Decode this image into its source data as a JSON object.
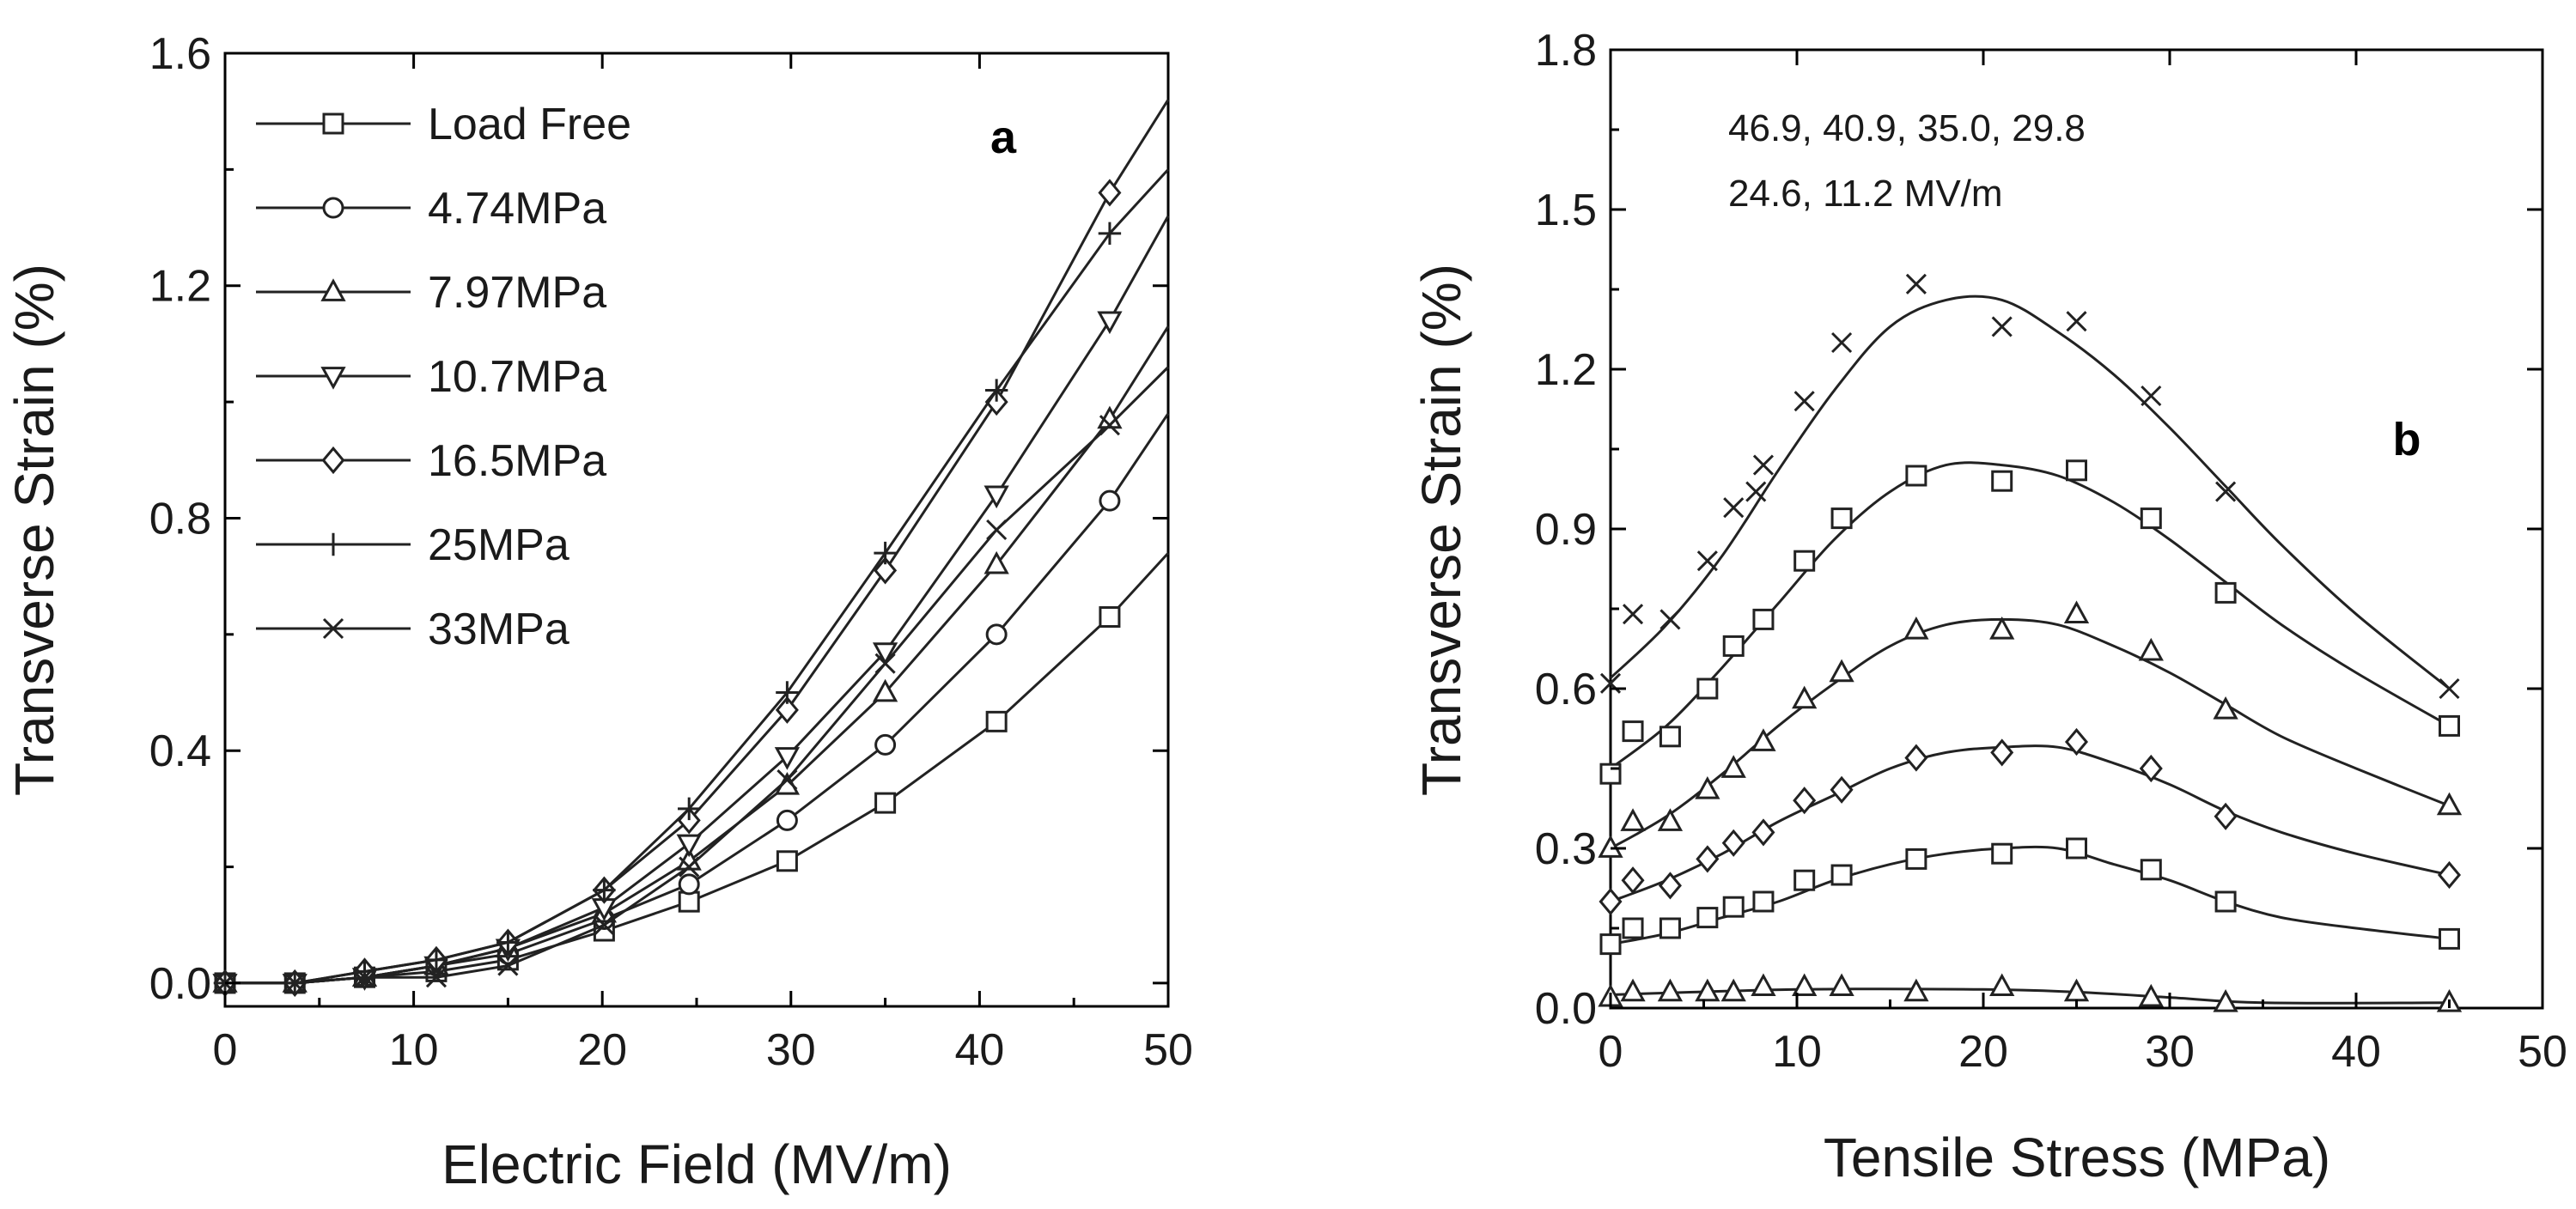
{
  "chart_data": [
    {
      "id": "a",
      "type": "line",
      "panel_label": "a",
      "xlabel": "Electric Field (MV/m)",
      "ylabel": "Transverse Strain (%)",
      "xlim": [
        0,
        50
      ],
      "ylim": [
        -0.04,
        1.6
      ],
      "xticks": [
        0,
        10,
        20,
        30,
        40,
        50
      ],
      "yticks": [
        0.0,
        0.4,
        0.8,
        1.2,
        1.6
      ],
      "ytick_labels": [
        "0.0",
        "0.4",
        "0.8",
        "1.2",
        "1.6"
      ],
      "legend_position": "top-left",
      "series": [
        {
          "name": "Load Free",
          "marker": "square",
          "x": [
            0,
            3.7,
            7.4,
            11.2,
            15,
            20.1,
            24.6,
            29.8,
            35,
            40.9,
            46.9,
            50
          ],
          "y": [
            0,
            0,
            0.01,
            0.02,
            0.04,
            0.09,
            0.14,
            0.21,
            0.31,
            0.45,
            0.63,
            0.74
          ]
        },
        {
          "name": "4.74MPa",
          "marker": "circle",
          "x": [
            0,
            3.7,
            7.4,
            11.2,
            15,
            20.1,
            24.6,
            29.8,
            35,
            40.9,
            46.9,
            50
          ],
          "y": [
            0,
            0,
            0.01,
            0.03,
            0.05,
            0.11,
            0.17,
            0.28,
            0.41,
            0.6,
            0.83,
            0.98
          ]
        },
        {
          "name": "7.97MPa",
          "marker": "triangle-up",
          "x": [
            0,
            3.7,
            7.4,
            11.2,
            15,
            20.1,
            24.6,
            29.8,
            35,
            40.9,
            46.9,
            50
          ],
          "y": [
            0,
            0,
            0.01,
            0.03,
            0.06,
            0.12,
            0.21,
            0.34,
            0.5,
            0.72,
            0.97,
            1.13
          ]
        },
        {
          "name": "10.7MPa",
          "marker": "triangle-down",
          "x": [
            0,
            3.7,
            7.4,
            11.2,
            15,
            20.1,
            24.6,
            29.8,
            35,
            40.9,
            46.9,
            50
          ],
          "y": [
            0,
            0,
            0.01,
            0.03,
            0.06,
            0.13,
            0.24,
            0.39,
            0.57,
            0.84,
            1.14,
            1.32
          ]
        },
        {
          "name": "16.5MPa",
          "marker": "diamond",
          "x": [
            0,
            3.7,
            7.4,
            11.2,
            15,
            20.1,
            24.6,
            29.8,
            35,
            40.9,
            46.9,
            50
          ],
          "y": [
            0,
            0,
            0.02,
            0.04,
            0.07,
            0.16,
            0.28,
            0.47,
            0.71,
            1.0,
            1.36,
            1.52
          ]
        },
        {
          "name": "25MPa",
          "marker": "plus",
          "x": [
            0,
            3.7,
            7.4,
            11.2,
            15,
            20.1,
            24.6,
            29.8,
            35,
            40.9,
            46.9,
            50
          ],
          "y": [
            0,
            0,
            0.02,
            0.04,
            0.07,
            0.16,
            0.3,
            0.5,
            0.74,
            1.02,
            1.29,
            1.4
          ]
        },
        {
          "name": "33MPa",
          "marker": "x",
          "x": [
            0,
            3.7,
            7.4,
            11.2,
            15,
            20.1,
            24.6,
            29.8,
            35,
            40.9,
            46.9,
            50
          ],
          "y": [
            0,
            0,
            0.01,
            0.01,
            0.03,
            0.1,
            0.2,
            0.35,
            0.55,
            0.78,
            0.96,
            1.06
          ]
        }
      ]
    },
    {
      "id": "b",
      "type": "line",
      "panel_label": "b",
      "xlabel": "Tensile Stress (MPa)",
      "ylabel": "Transverse Strain (%)",
      "xlim": [
        0,
        50
      ],
      "ylim": [
        0,
        1.8
      ],
      "xticks": [
        0,
        10,
        20,
        30,
        40,
        50
      ],
      "yticks": [
        0.0,
        0.3,
        0.6,
        0.9,
        1.2,
        1.5,
        1.8
      ],
      "ytick_labels": [
        "0.0",
        "0.3",
        "0.6",
        "0.9",
        "1.2",
        "1.5",
        "1.8"
      ],
      "annotation_lines": [
        "46.9, 40.9, 35.0, 29.8",
        "24.6, 11.2 MV/m"
      ],
      "series": [
        {
          "name": "46.9 MV/m",
          "marker": "x",
          "x": [
            0,
            1.2,
            3.2,
            5.2,
            6.6,
            7.8,
            8.2,
            10.4,
            12.4,
            16.4,
            21,
            25,
            29,
            33,
            45
          ],
          "y": [
            0.61,
            0.74,
            0.73,
            0.84,
            0.94,
            0.97,
            1.02,
            1.14,
            1.25,
            1.36,
            1.28,
            1.29,
            1.15,
            0.97,
            0.6
          ],
          "fit_x": [
            0,
            3,
            6,
            9,
            12,
            15,
            18,
            21,
            24,
            27,
            30,
            33,
            36,
            40,
            45
          ],
          "fit_y": [
            0.62,
            0.72,
            0.85,
            1.01,
            1.16,
            1.28,
            1.33,
            1.33,
            1.27,
            1.19,
            1.09,
            0.98,
            0.87,
            0.74,
            0.6
          ]
        },
        {
          "name": "40.9 MV/m",
          "marker": "square",
          "x": [
            0,
            1.2,
            3.2,
            5.2,
            6.6,
            8.2,
            10.4,
            12.4,
            16.4,
            21,
            25,
            29,
            33,
            45
          ],
          "y": [
            0.44,
            0.52,
            0.51,
            0.6,
            0.68,
            0.73,
            0.84,
            0.92,
            1.0,
            0.99,
            1.01,
            0.92,
            0.78,
            0.53
          ],
          "fit_x": [
            0,
            3,
            6,
            9,
            12,
            15,
            18,
            21,
            24,
            27,
            30,
            33,
            36,
            40,
            45
          ],
          "fit_y": [
            0.45,
            0.53,
            0.64,
            0.76,
            0.88,
            0.97,
            1.02,
            1.02,
            1.0,
            0.95,
            0.88,
            0.8,
            0.72,
            0.63,
            0.53
          ]
        },
        {
          "name": "35.0 MV/m",
          "marker": "triangle-up",
          "x": [
            0,
            1.2,
            3.2,
            5.2,
            6.6,
            8.2,
            10.4,
            12.4,
            16.4,
            21,
            25,
            29,
            33,
            45
          ],
          "y": [
            0.3,
            0.35,
            0.35,
            0.41,
            0.45,
            0.5,
            0.58,
            0.63,
            0.71,
            0.71,
            0.74,
            0.67,
            0.56,
            0.38
          ],
          "fit_x": [
            0,
            3,
            6,
            9,
            12,
            15,
            18,
            21,
            24,
            27,
            30,
            33,
            36,
            40,
            45
          ],
          "fit_y": [
            0.3,
            0.36,
            0.44,
            0.53,
            0.61,
            0.68,
            0.72,
            0.73,
            0.72,
            0.68,
            0.63,
            0.57,
            0.51,
            0.45,
            0.38
          ]
        },
        {
          "name": "29.8 MV/m",
          "marker": "diamond",
          "x": [
            0,
            1.2,
            3.2,
            5.2,
            6.6,
            8.2,
            10.4,
            12.4,
            16.4,
            21,
            25,
            29,
            33,
            45
          ],
          "y": [
            0.2,
            0.24,
            0.23,
            0.28,
            0.31,
            0.33,
            0.39,
            0.41,
            0.47,
            0.48,
            0.5,
            0.45,
            0.36,
            0.25
          ],
          "fit_x": [
            0,
            3,
            6,
            9,
            12,
            15,
            18,
            21,
            24,
            27,
            30,
            33,
            36,
            40,
            45
          ],
          "fit_y": [
            0.2,
            0.24,
            0.29,
            0.35,
            0.4,
            0.45,
            0.48,
            0.49,
            0.49,
            0.46,
            0.42,
            0.37,
            0.33,
            0.29,
            0.25
          ]
        },
        {
          "name": "24.6 MV/m",
          "marker": "square",
          "x": [
            0,
            1.2,
            3.2,
            5.2,
            6.6,
            8.2,
            10.4,
            12.4,
            16.4,
            21,
            25,
            29,
            33,
            45
          ],
          "y": [
            0.12,
            0.15,
            0.15,
            0.17,
            0.19,
            0.2,
            0.24,
            0.25,
            0.28,
            0.29,
            0.3,
            0.26,
            0.2,
            0.13
          ],
          "fit_x": [
            0,
            3,
            6,
            9,
            12,
            15,
            18,
            21,
            24,
            27,
            30,
            33,
            36,
            40,
            45
          ],
          "fit_y": [
            0.12,
            0.14,
            0.17,
            0.2,
            0.24,
            0.27,
            0.29,
            0.3,
            0.3,
            0.27,
            0.24,
            0.2,
            0.17,
            0.15,
            0.13
          ]
        },
        {
          "name": "11.2 MV/m",
          "marker": "triangle-up",
          "x": [
            0,
            1.2,
            3.2,
            5.2,
            6.6,
            8.2,
            10.4,
            12.4,
            16.4,
            21,
            25,
            29,
            33,
            45
          ],
          "y": [
            0.02,
            0.03,
            0.03,
            0.03,
            0.03,
            0.04,
            0.04,
            0.04,
            0.03,
            0.04,
            0.03,
            0.02,
            0.01,
            0.01
          ],
          "fit_x": [
            0,
            10,
            20,
            25,
            30,
            35,
            45
          ],
          "fit_y": [
            0.025,
            0.035,
            0.035,
            0.03,
            0.02,
            0.01,
            0.01
          ]
        }
      ]
    }
  ]
}
